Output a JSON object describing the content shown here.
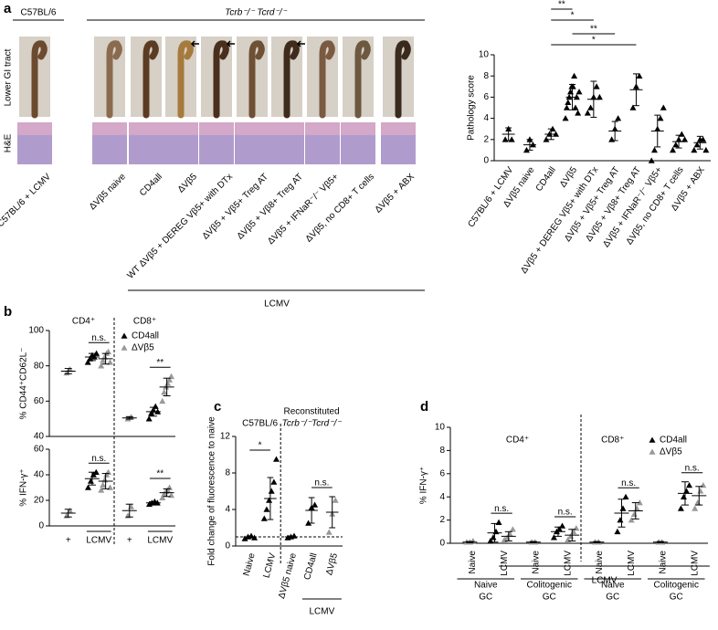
{
  "panel_labels": [
    "a",
    "b",
    "c",
    "d"
  ],
  "photos": {
    "header_wt": "C57BL/6",
    "header_ko": "Tcrb⁻/⁻ Tcrd⁻/⁻",
    "row_labels": [
      "Lower GI tract",
      "H&E"
    ],
    "columns": [
      "C57BL/6 + LCMV",
      "ΔVβ5 naive",
      "CD4all",
      "ΔVβ5",
      "WT ΔVβ5 + DEREG Vβ5+ with DTx",
      "ΔVβ5 + Vβ5+ Treg AT",
      "ΔVβ5 + Vβ8+ Treg AT",
      "ΔVβ5 + IFNaR⁻/⁻ Vβ5+",
      "ΔVβ5, no CD8+ T cells",
      "ΔVβ5 + ABX"
    ],
    "treatment": "LCMV"
  },
  "chart_data": [
    {
      "type": "dotplot",
      "ylabel": "Pathology score",
      "ylim": [
        0,
        10
      ],
      "yticks": [
        0,
        2,
        4,
        6,
        8,
        10
      ],
      "categories": [
        "C57BL/6 + LCMV",
        "ΔVβ5 naive",
        "CD4all",
        "ΔVβ5",
        "ΔVβ5 + DEREG Vβ5+ with DTx",
        "ΔVβ5 + Vβ5+ Treg AT",
        "ΔVβ5 + Vβ8+ Treg AT",
        "ΔVβ5 + IFNaR⁻/⁻ Vβ5+",
        "ΔVβ5, no CD8+ T cells",
        "ΔVβ5 + ABX"
      ],
      "groups": [
        {
          "category": 0,
          "color": "#000000",
          "points": [
            2,
            3,
            2
          ],
          "mean": 2.5,
          "sd": 0.6
        },
        {
          "category": 1,
          "color": "#000000",
          "points": [
            1,
            2,
            1.5
          ],
          "mean": 1.5,
          "sd": 0.5
        },
        {
          "category": 2,
          "color": "#000000",
          "points": [
            2,
            2.5,
            3,
            2.5
          ],
          "mean": 2.5,
          "sd": 0.5
        },
        {
          "category": 3,
          "color": "#000000",
          "points": [
            4,
            5,
            5.5,
            6,
            6.5,
            7,
            7,
            8,
            5,
            6,
            4.5,
            6.5
          ],
          "mean": 6,
          "sd": 1.2
        },
        {
          "category": 4,
          "color": "#000000",
          "points": [
            4.5,
            5,
            6,
            7,
            6
          ],
          "mean": 5.8,
          "sd": 1.7
        },
        {
          "category": 5,
          "color": "#000000",
          "points": [
            2,
            3,
            4
          ],
          "mean": 2.8,
          "sd": 0.9
        },
        {
          "category": 6,
          "color": "#000000",
          "points": [
            5,
            7,
            8
          ],
          "mean": 6.7,
          "sd": 1.5
        },
        {
          "category": 7,
          "color": "#000000",
          "points": [
            0,
            1,
            3,
            4,
            5
          ],
          "mean": 2.8,
          "sd": 1.5
        },
        {
          "category": 8,
          "color": "#000000",
          "points": [
            1,
            1.5,
            2,
            2.5,
            2
          ],
          "mean": 1.8,
          "sd": 0.6
        },
        {
          "category": 9,
          "color": "#000000",
          "points": [
            1,
            1.5,
            2,
            2,
            1
          ],
          "mean": 1.7,
          "sd": 0.6
        }
      ],
      "annotations": [
        {
          "text": "**",
          "from": 2,
          "to": 3
        },
        {
          "text": "*",
          "from": 2,
          "to": 4
        },
        {
          "text": "**",
          "from": 3,
          "to": 5
        },
        {
          "text": "*",
          "from": 2,
          "to": 6
        }
      ],
      "treatment": {
        "text": "LCMV",
        "from": 0,
        "to": 9
      }
    },
    {
      "type": "dotplot",
      "ylabel": "% CD44⁺CD62L⁻",
      "ylim": [
        40,
        100
      ],
      "yticks": [
        40,
        60,
        80,
        100
      ],
      "headers": [
        {
          "lines": [
            "CD4⁺"
          ],
          "from": 0,
          "to": 1
        },
        {
          "lines": [
            "CD8⁺"
          ],
          "from": 2,
          "to": 3
        }
      ],
      "legend": [
        {
          "name": "CD4all",
          "color": "#000000"
        },
        {
          "name": "ΔVβ5",
          "color": "#999999"
        }
      ],
      "groups": [
        {
          "category": 0,
          "color": "#999999",
          "points": [
            76,
            78
          ],
          "mean": 77,
          "sd": 1.5
        },
        {
          "category": 1,
          "color": "#000000",
          "points": [
            82,
            84,
            86,
            85,
            87
          ],
          "mean": 85,
          "sd": 2
        },
        {
          "category": 1,
          "color": "#999999",
          "points": [
            80,
            83,
            85,
            87,
            88,
            82
          ],
          "mean": 84,
          "sd": 3
        },
        {
          "category": 2,
          "color": "#999999",
          "points": [
            50,
            51
          ],
          "mean": 50.5,
          "sd": 0.7
        },
        {
          "category": 3,
          "color": "#000000",
          "points": [
            50,
            53,
            55,
            57,
            54
          ],
          "mean": 54,
          "sd": 2.5
        },
        {
          "category": 3,
          "color": "#999999",
          "points": [
            60,
            65,
            68,
            70,
            72,
            74
          ],
          "mean": 68,
          "sd": 5
        }
      ],
      "annotations": [
        {
          "text": "n.s.",
          "from": 1,
          "to": 1
        },
        {
          "text": "**",
          "from": 3,
          "to": 3
        }
      ]
    },
    {
      "type": "dotplot",
      "ylabel": "% IFN-γ⁺",
      "ylim": [
        0,
        60
      ],
      "yticks": [
        0,
        20,
        40,
        60
      ],
      "categories": [
        "+",
        "LCMV",
        "+",
        "LCMV"
      ],
      "groups": [
        {
          "category": 0,
          "color": "#999999",
          "points": [
            8,
            12
          ],
          "mean": 10,
          "sd": 3
        },
        {
          "category": 1,
          "color": "#000000",
          "points": [
            30,
            35,
            40,
            42
          ],
          "mean": 37,
          "sd": 5
        },
        {
          "category": 1,
          "color": "#999999",
          "points": [
            28,
            32,
            36,
            40,
            42,
            30
          ],
          "mean": 35,
          "sd": 6
        },
        {
          "category": 2,
          "color": "#999999",
          "points": [
            8,
            15
          ],
          "mean": 12,
          "sd": 5
        },
        {
          "category": 3,
          "color": "#000000",
          "points": [
            17,
            18,
            19,
            18
          ],
          "mean": 18,
          "sd": 1
        },
        {
          "category": 3,
          "color": "#999999",
          "points": [
            22,
            25,
            27,
            28,
            30,
            24
          ],
          "mean": 26,
          "sd": 3
        }
      ],
      "annotations": [
        {
          "text": "n.s.",
          "from": 1,
          "to": 1
        },
        {
          "text": "**",
          "from": 3,
          "to": 3
        }
      ]
    },
    {
      "type": "dotplot",
      "ylabel": "Fold change of fluorescence to naive",
      "ylim": [
        0,
        12
      ],
      "yticks": [
        0,
        4,
        8,
        12
      ],
      "baseline": 1,
      "categories": [
        "Naive",
        "LCMV",
        "ΔVβ5 naive",
        "CD4all",
        "ΔVβ5"
      ],
      "headers": [
        {
          "lines": [
            "C57BL/6"
          ],
          "from": 0,
          "to": 1
        },
        {
          "lines": [
            "Reconstituted",
            "Tcrb⁻/⁻Tcrd⁻/⁻"
          ],
          "from": 2,
          "to": 4
        }
      ],
      "groups": [
        {
          "category": 0,
          "color": "#000000",
          "points": [
            0.8,
            1,
            1.1,
            0.9
          ],
          "mean": 1,
          "sd": 0.1
        },
        {
          "category": 1,
          "color": "#000000",
          "points": [
            3,
            4,
            5,
            6,
            7,
            9.5
          ],
          "mean": 5.2,
          "sd": 2.3
        },
        {
          "category": 2,
          "color": "#000000",
          "points": [
            0.9,
            1,
            1.1
          ],
          "mean": 1,
          "sd": 0.1
        },
        {
          "category": 3,
          "color": "#000000",
          "points": [
            2.5,
            4.2,
            4.5
          ],
          "mean": 3.9,
          "sd": 1.4
        },
        {
          "category": 4,
          "color": "#999999",
          "points": [
            1.5,
            3.5,
            5
          ],
          "mean": 3.7,
          "sd": 1.7
        }
      ],
      "annotations": [
        {
          "text": "*",
          "from": 0,
          "to": 1
        },
        {
          "text": "n.s.",
          "from": 3,
          "to": 4
        }
      ],
      "treatment": {
        "text": "LCMV",
        "from": 3,
        "to": 4
      }
    },
    {
      "type": "dotplot",
      "ylabel": "% IFN-γ⁺",
      "ylim": [
        0,
        10
      ],
      "yticks": [
        0,
        2,
        4,
        6,
        8,
        10
      ],
      "categories": [
        "Naive",
        "LCMV",
        "Naive",
        "LCMV",
        "Naive",
        "LCMV",
        "Naive",
        "LCMV"
      ],
      "headers": [
        {
          "lines": [
            "CD4⁺"
          ],
          "from": 0,
          "to": 3
        },
        {
          "lines": [
            "CD8⁺"
          ],
          "from": 4,
          "to": 5
        }
      ],
      "legend": [
        {
          "name": "CD4all",
          "color": "#000000"
        },
        {
          "name": "ΔVβ5",
          "color": "#999999"
        }
      ],
      "group_labels": [
        {
          "lines": [
            "Naive",
            "GC"
          ],
          "from": 0,
          "to": 1
        },
        {
          "lines": [
            "Colitogenic",
            "GC"
          ],
          "from": 2,
          "to": 3
        },
        {
          "lines": [
            "Naive",
            "GC"
          ],
          "from": 4,
          "to": 5
        },
        {
          "lines": [
            "Colitogenic",
            "GC"
          ],
          "from": 6,
          "to": 7
        }
      ],
      "groups": [
        {
          "category": 0,
          "color": "#999999",
          "points": [
            0.1,
            0.1,
            0.2
          ],
          "mean": 0.1,
          "sd": 0.05
        },
        {
          "category": 1,
          "color": "#000000",
          "points": [
            0.2,
            0.5,
            1,
            1.8
          ],
          "mean": 0.9,
          "sd": 0.8
        },
        {
          "category": 1,
          "color": "#999999",
          "points": [
            0.3,
            0.5,
            0.8,
            1.2
          ],
          "mean": 0.6,
          "sd": 0.4
        },
        {
          "category": 2,
          "color": "#999999",
          "points": [
            0.1,
            0.1
          ],
          "mean": 0.1,
          "sd": 0.05
        },
        {
          "category": 3,
          "color": "#000000",
          "points": [
            0.5,
            1,
            1.2,
            1.5
          ],
          "mean": 1,
          "sd": 0.4
        },
        {
          "category": 3,
          "color": "#999999",
          "points": [
            0.3,
            0.6,
            1,
            1.3
          ],
          "mean": 0.7,
          "sd": 0.5
        },
        {
          "category": 4,
          "color": "#999999",
          "points": [
            0.1,
            0.1
          ],
          "mean": 0.1,
          "sd": 0.05
        },
        {
          "category": 5,
          "color": "#000000",
          "points": [
            1,
            2,
            3,
            4
          ],
          "mean": 2.6,
          "sd": 1.2
        },
        {
          "category": 5,
          "color": "#999999",
          "points": [
            2,
            2.5,
            3,
            3.5
          ],
          "mean": 2.8,
          "sd": 0.7
        },
        {
          "category": 6,
          "color": "#999999",
          "points": [
            0.1,
            0.1
          ],
          "mean": 0.1,
          "sd": 0.05
        },
        {
          "category": 7,
          "color": "#000000",
          "points": [
            3,
            4,
            4.5,
            5
          ],
          "mean": 4.3,
          "sd": 1
        },
        {
          "category": 7,
          "color": "#999999",
          "points": [
            3,
            3.5,
            4.5,
            5
          ],
          "mean": 4.1,
          "sd": 0.8
        }
      ],
      "annotations": [
        {
          "text": "n.s.",
          "from": 1,
          "to": 1
        },
        {
          "text": "n.s.",
          "from": 3,
          "to": 3
        },
        {
          "text": "n.s.",
          "from": 5,
          "to": 5
        },
        {
          "text": "n.s.",
          "from": 7,
          "to": 7
        }
      ]
    }
  ]
}
